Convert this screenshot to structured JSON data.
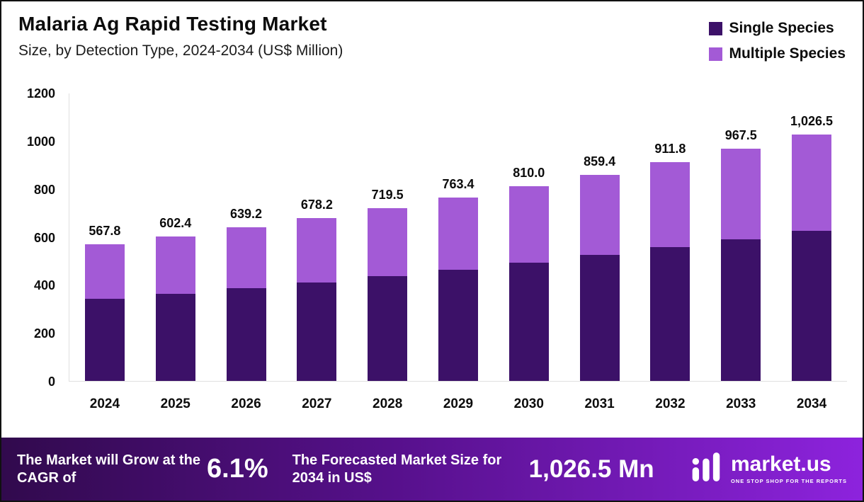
{
  "header": {
    "title": "Malaria Ag Rapid Testing Market",
    "subtitle": "Size, by Detection Type, 2024-2034 (US$ Million)"
  },
  "legend": [
    {
      "label": "Single Species",
      "color": "#3c1168"
    },
    {
      "label": "Multiple Species",
      "color": "#a35ad6"
    }
  ],
  "chart_data": {
    "type": "bar",
    "stacked": true,
    "title": "Malaria Ag Rapid Testing Market",
    "subtitle": "Size, by Detection Type, 2024-2034 (US$ Million)",
    "xlabel": "",
    "ylabel": "",
    "ylim": [
      0,
      1200
    ],
    "yticks": [
      0,
      200,
      400,
      600,
      800,
      1000,
      1200
    ],
    "grid": false,
    "legend_position": "top-right",
    "categories": [
      "2024",
      "2025",
      "2026",
      "2027",
      "2028",
      "2029",
      "2030",
      "2031",
      "2032",
      "2033",
      "2034"
    ],
    "series": [
      {
        "name": "Single Species",
        "color": "#3c1168",
        "values": [
          341,
          363,
          386,
          410,
          436,
          462,
          492,
          524,
          556,
          589,
          626
        ]
      },
      {
        "name": "Multiple Species",
        "color": "#a35ad6",
        "values": [
          226.8,
          239.4,
          253.2,
          268.2,
          283.5,
          301.4,
          318.0,
          335.4,
          355.8,
          378.5,
          400.5
        ]
      }
    ],
    "totals": [
      567.8,
      602.4,
      639.2,
      678.2,
      719.5,
      763.4,
      810.0,
      859.4,
      911.8,
      967.5,
      1026.5
    ],
    "total_labels": [
      "567.8",
      "602.4",
      "639.2",
      "678.2",
      "719.5",
      "763.4",
      "810.0",
      "859.4",
      "911.8",
      "967.5",
      "1,026.5"
    ]
  },
  "banner": {
    "grow_text": "The Market will Grow at the CAGR of",
    "cagr": "6.1%",
    "forecast_text": "The Forecasted Market Size for 2034 in US$",
    "forecast_value": "1,026.5 Mn",
    "brand_name": "market.us",
    "brand_tagline": "ONE STOP SHOP FOR THE REPORTS"
  }
}
